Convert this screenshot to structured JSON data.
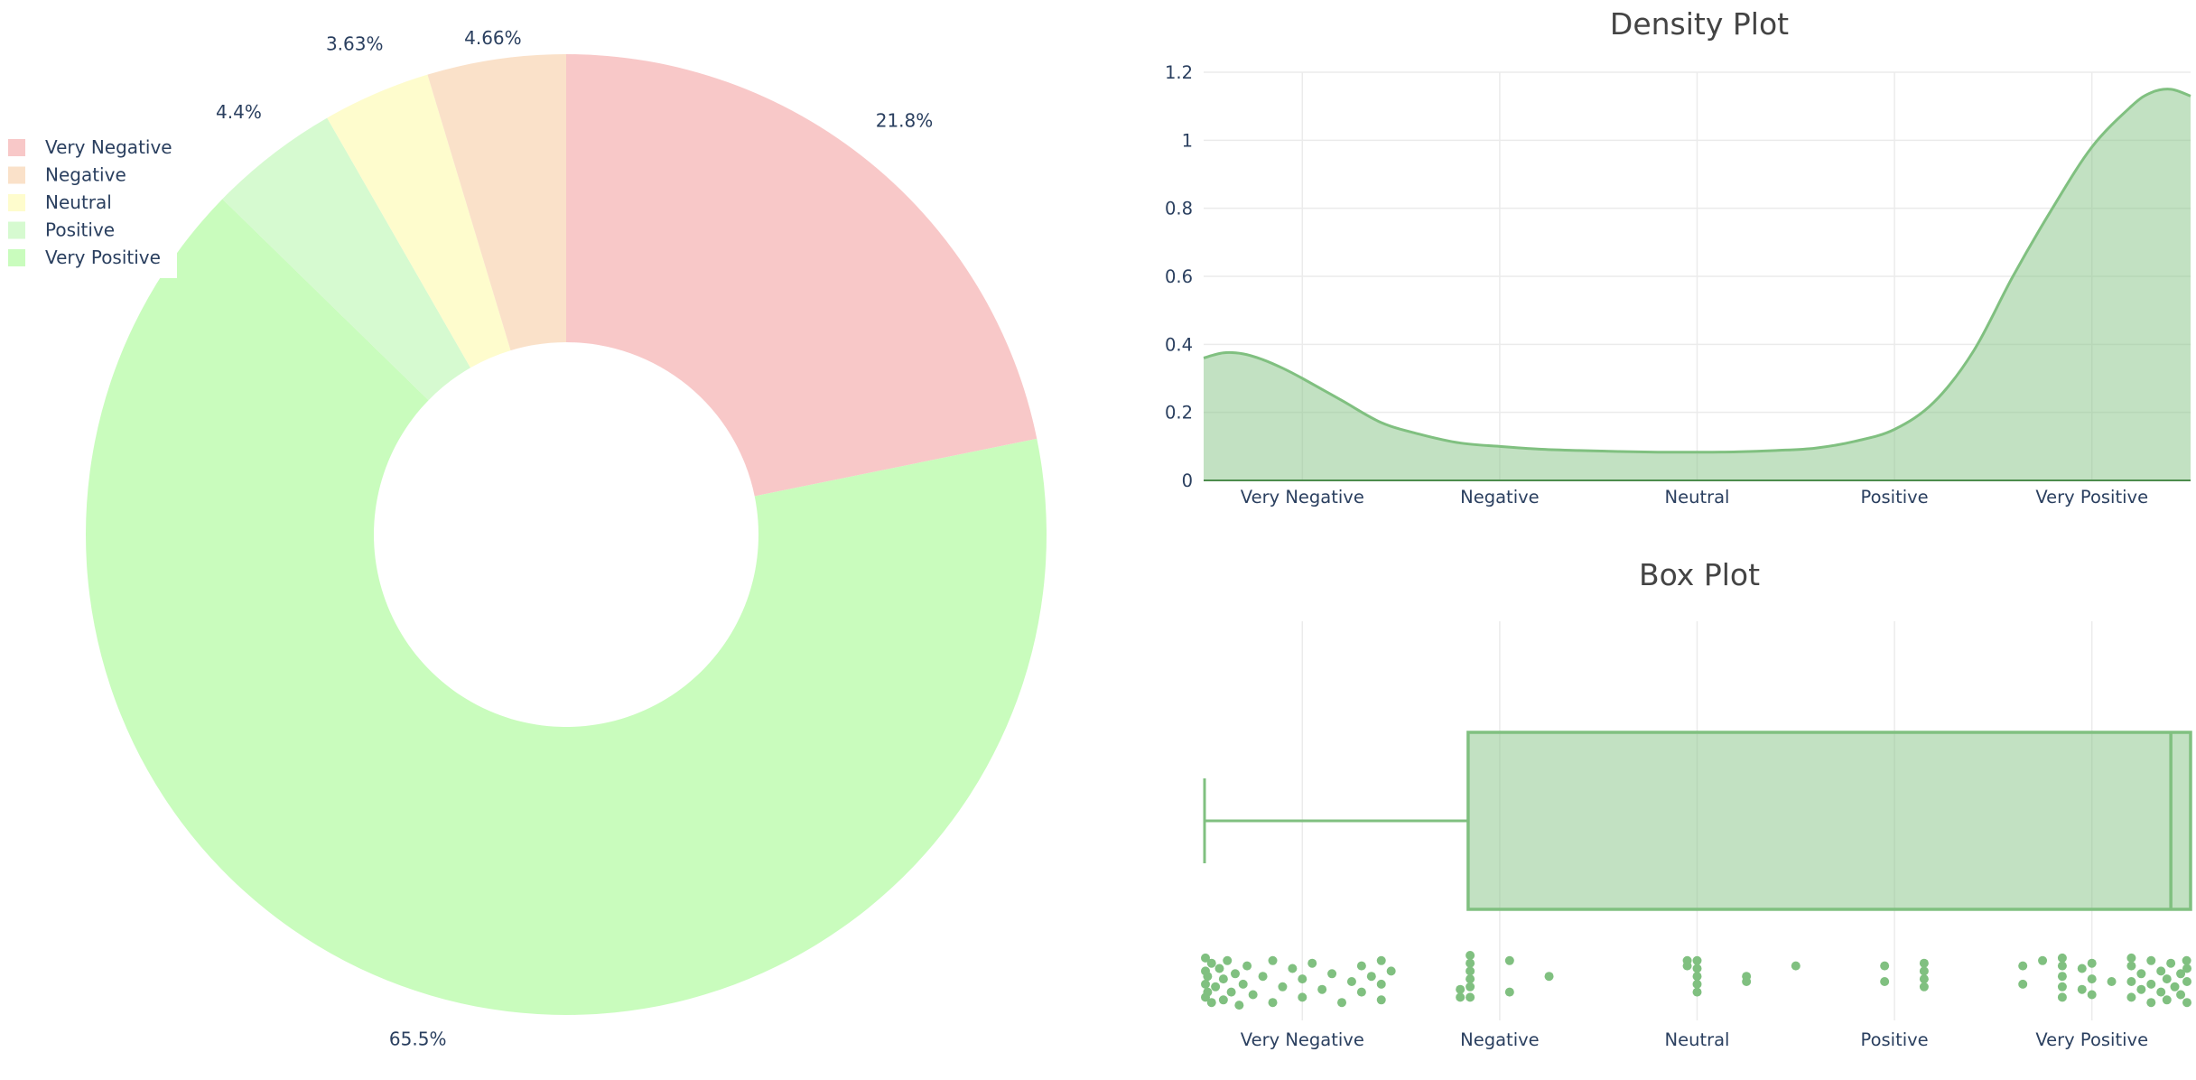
{
  "chart_data": [
    {
      "type": "pie",
      "hole": true,
      "categories": [
        "Very Negative",
        "Negative",
        "Neutral",
        "Positive",
        "Very Positive"
      ],
      "values": [
        21.8,
        4.66,
        3.63,
        4.4,
        65.5
      ],
      "labels": [
        "21.8%",
        "4.66%",
        "3.63%",
        "4.4%",
        "65.5%"
      ],
      "colors": [
        "#f8c8c8",
        "#fae1c9",
        "#fefccd",
        "#d6fad0",
        "#c9fcbd"
      ],
      "legend": "top-left"
    },
    {
      "type": "area",
      "title": "Density Plot",
      "categories": [
        "Very Negative",
        "Negative",
        "Neutral",
        "Positive",
        "Very Positive"
      ],
      "xlim": [
        0.5,
        5.5
      ],
      "ylim": [
        0,
        1.2
      ],
      "yticks": [
        "0",
        "0.2",
        "0.4",
        "0.6",
        "0.8",
        "1",
        "1.2"
      ],
      "x": [
        0.5,
        0.6,
        0.7,
        0.8,
        0.9,
        1.0,
        1.2,
        1.4,
        1.6,
        1.8,
        2.0,
        2.2,
        2.4,
        2.6,
        2.8,
        3.0,
        3.2,
        3.4,
        3.6,
        3.8,
        4.0,
        4.2,
        4.4,
        4.6,
        4.8,
        5.0,
        5.2,
        5.3,
        5.4,
        5.5
      ],
      "y": [
        0.36,
        0.375,
        0.372,
        0.355,
        0.33,
        0.3,
        0.235,
        0.17,
        0.135,
        0.11,
        0.1,
        0.092,
        0.088,
        0.085,
        0.083,
        0.083,
        0.084,
        0.088,
        0.095,
        0.115,
        0.15,
        0.23,
        0.38,
        0.6,
        0.8,
        0.98,
        1.1,
        1.14,
        1.15,
        1.13
      ],
      "color": "#80c080",
      "grid": true
    },
    {
      "type": "box",
      "title": "Box Plot",
      "categories": [
        "Very Negative",
        "Negative",
        "Neutral",
        "Positive",
        "Very Positive"
      ],
      "xlim": [
        0.5,
        5.5
      ],
      "box": {
        "min": 0.5,
        "q1": 1.84,
        "median": 5.4,
        "q3": 5.5
      },
      "points": [
        [
          0.5,
          0.2
        ],
        [
          0.5,
          0.45
        ],
        [
          0.5,
          0.7
        ],
        [
          0.5,
          0.95
        ],
        [
          0.52,
          0.3
        ],
        [
          0.52,
          0.6
        ],
        [
          0.54,
          0.1
        ],
        [
          0.54,
          0.85
        ],
        [
          0.56,
          0.4
        ],
        [
          0.58,
          0.75
        ],
        [
          0.6,
          0.15
        ],
        [
          0.6,
          0.55
        ],
        [
          0.62,
          0.9
        ],
        [
          0.64,
          0.3
        ],
        [
          0.66,
          0.65
        ],
        [
          0.68,
          0.05
        ],
        [
          0.7,
          0.45
        ],
        [
          0.72,
          0.8
        ],
        [
          0.75,
          0.25
        ],
        [
          0.8,
          0.6
        ],
        [
          0.85,
          0.9
        ],
        [
          0.85,
          0.1
        ],
        [
          0.9,
          0.4
        ],
        [
          0.95,
          0.75
        ],
        [
          1.0,
          0.2
        ],
        [
          1.0,
          0.55
        ],
        [
          1.05,
          0.85
        ],
        [
          1.1,
          0.35
        ],
        [
          1.15,
          0.65
        ],
        [
          1.2,
          0.1
        ],
        [
          1.25,
          0.5
        ],
        [
          1.3,
          0.8
        ],
        [
          1.3,
          0.3
        ],
        [
          1.35,
          0.6
        ],
        [
          1.4,
          0.15
        ],
        [
          1.4,
          0.9
        ],
        [
          1.4,
          0.45
        ],
        [
          1.45,
          0.7
        ],
        [
          1.8,
          0.2
        ],
        [
          1.8,
          0.35
        ],
        [
          1.85,
          0.2
        ],
        [
          1.85,
          0.4
        ],
        [
          1.85,
          0.55
        ],
        [
          1.85,
          0.7
        ],
        [
          1.85,
          0.85
        ],
        [
          1.85,
          1.0
        ],
        [
          2.05,
          0.3
        ],
        [
          2.05,
          0.9
        ],
        [
          2.25,
          0.6
        ],
        [
          2.95,
          0.8
        ],
        [
          2.95,
          0.9
        ],
        [
          3.0,
          0.3
        ],
        [
          3.0,
          0.45
        ],
        [
          3.0,
          0.6
        ],
        [
          3.0,
          0.75
        ],
        [
          3.0,
          0.9
        ],
        [
          3.25,
          0.5
        ],
        [
          3.25,
          0.6
        ],
        [
          3.5,
          0.8
        ],
        [
          3.95,
          0.5
        ],
        [
          3.95,
          0.8
        ],
        [
          4.15,
          0.4
        ],
        [
          4.15,
          0.55
        ],
        [
          4.15,
          0.7
        ],
        [
          4.15,
          0.85
        ],
        [
          4.65,
          0.45
        ],
        [
          4.65,
          0.8
        ],
        [
          4.75,
          0.9
        ],
        [
          4.85,
          0.2
        ],
        [
          4.85,
          0.4
        ],
        [
          4.85,
          0.6
        ],
        [
          4.85,
          0.8
        ],
        [
          4.85,
          0.95
        ],
        [
          4.95,
          0.35
        ],
        [
          4.95,
          0.75
        ],
        [
          5.0,
          0.25
        ],
        [
          5.0,
          0.55
        ],
        [
          5.0,
          0.85
        ],
        [
          5.1,
          0.5
        ],
        [
          5.2,
          0.2
        ],
        [
          5.2,
          0.5
        ],
        [
          5.2,
          0.8
        ],
        [
          5.2,
          0.95
        ],
        [
          5.25,
          0.35
        ],
        [
          5.25,
          0.65
        ],
        [
          5.3,
          0.1
        ],
        [
          5.3,
          0.45
        ],
        [
          5.3,
          0.9
        ],
        [
          5.35,
          0.3
        ],
        [
          5.35,
          0.7
        ],
        [
          5.38,
          0.15
        ],
        [
          5.38,
          0.55
        ],
        [
          5.4,
          0.85
        ],
        [
          5.42,
          0.4
        ],
        [
          5.45,
          0.25
        ],
        [
          5.45,
          0.65
        ],
        [
          5.48,
          0.9
        ],
        [
          5.5,
          0.1
        ],
        [
          5.5,
          0.5
        ],
        [
          5.5,
          0.75
        ]
      ],
      "color": "#80c080",
      "grid": true
    }
  ]
}
